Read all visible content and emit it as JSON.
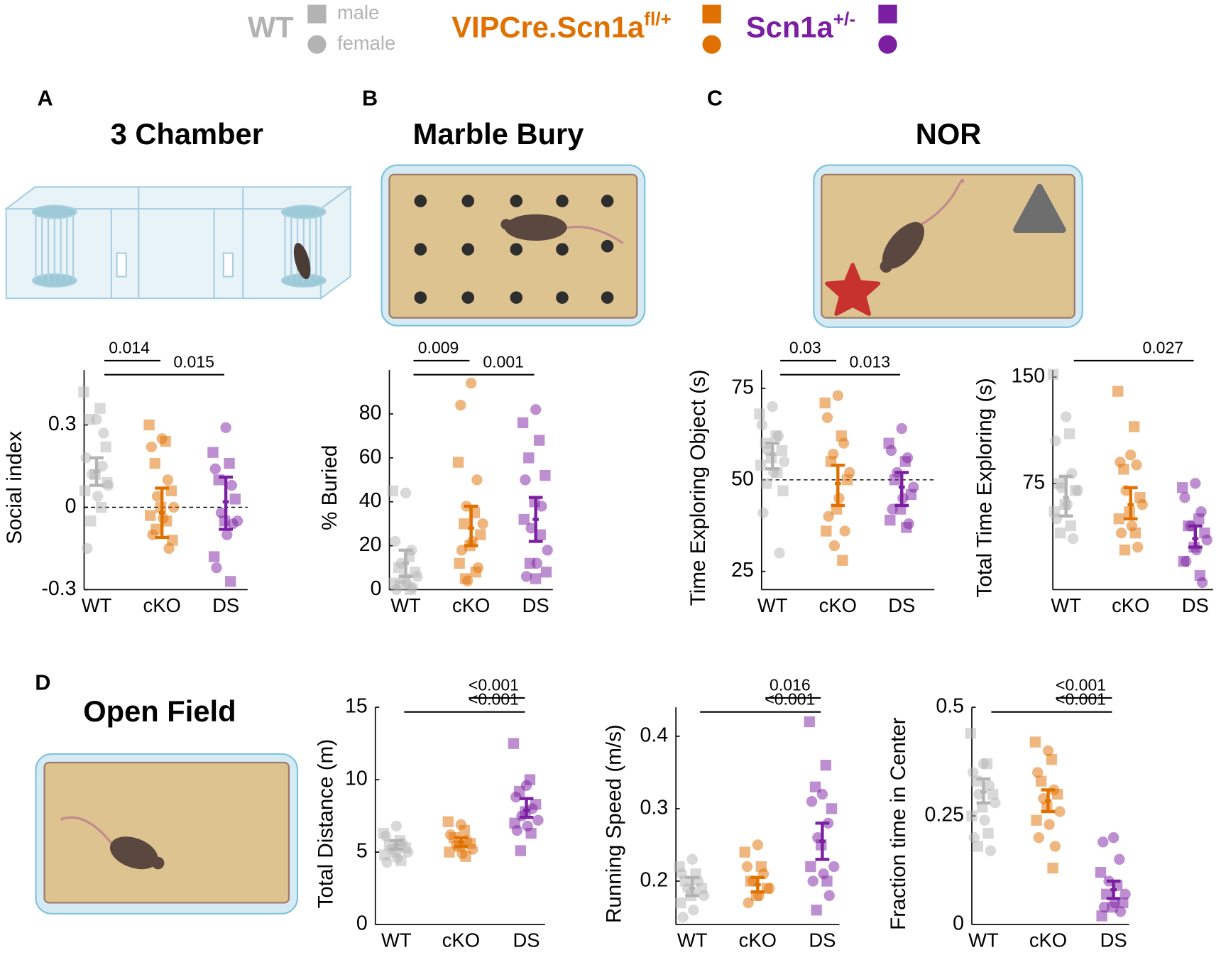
{
  "legend": {
    "groups": [
      {
        "name": "WT",
        "color": "#b3b3b3"
      },
      {
        "name": "VIPCre.Scn1a",
        "sup": "fl/+",
        "color": "#e07000"
      },
      {
        "name": "Scn1a",
        "sup": "+/-",
        "color": "#7b1fa2"
      }
    ],
    "sexes": [
      {
        "name": "male",
        "marker": "square"
      },
      {
        "name": "female",
        "marker": "circle"
      }
    ]
  },
  "panels": [
    {
      "letter": "A",
      "title": "3 Chamber"
    },
    {
      "letter": "B",
      "title": "Marble Bury"
    },
    {
      "letter": "C",
      "title": "NOR"
    },
    {
      "letter": "D",
      "title": "Open Field"
    }
  ],
  "chart_data": [
    {
      "type": "strip",
      "ylabel": "Social index",
      "categories": [
        "WT",
        "cKO",
        "DS"
      ],
      "ylim": [
        -0.3,
        0.5
      ],
      "yticks": [
        -0.3,
        0,
        0.3
      ],
      "refline": 0,
      "groups": [
        {
          "male": [
            0.42,
            0.36,
            0.32,
            0.22,
            0.12,
            0.06,
            0.0,
            -0.05,
            0.09
          ],
          "female": [
            0.32,
            0.18,
            0.15,
            0.12,
            0.08,
            0.04,
            -0.15,
            0.27
          ],
          "mean": 0.13,
          "err_low": 0.08,
          "err_high": 0.18
        },
        {
          "male": [
            0.3,
            0.24,
            0.16,
            0.06,
            0.0,
            -0.03,
            -0.05,
            -0.08,
            -0.12
          ],
          "female": [
            0.25,
            0.22,
            0.1,
            0.04,
            0.0,
            -0.04,
            -0.1,
            -0.15
          ],
          "mean": -0.02,
          "err_low": -0.11,
          "err_high": 0.07
        },
        {
          "male": [
            0.2,
            0.16,
            0.1,
            0.03,
            -0.05,
            -0.18,
            -0.27
          ],
          "female": [
            0.29,
            0.14,
            0.08,
            -0.02,
            -0.05,
            -0.1,
            -0.22,
            -0.06
          ],
          "mean": 0.02,
          "err_low": -0.08,
          "err_high": 0.11
        }
      ],
      "comparisons": [
        {
          "from": 0,
          "to": 1,
          "label": "0.014"
        },
        {
          "from": 0,
          "to": 2,
          "label": "0.015"
        }
      ]
    },
    {
      "type": "strip",
      "ylabel": "% Buried",
      "categories": [
        "WT",
        "cKO",
        "DS"
      ],
      "ylim": [
        0,
        100
      ],
      "yticks": [
        0,
        20,
        40,
        60,
        80
      ],
      "groups": [
        {
          "male": [
            45,
            15,
            10,
            8,
            5,
            3,
            0,
            2
          ],
          "female": [
            44,
            22,
            18,
            12,
            6,
            3,
            0,
            1
          ],
          "mean": 12,
          "err_low": 6,
          "err_high": 18
        },
        {
          "male": [
            58,
            35,
            30,
            25,
            20,
            12,
            8,
            5
          ],
          "female": [
            94,
            84,
            50,
            38,
            30,
            22,
            18,
            10,
            4
          ],
          "mean": 28,
          "err_low": 20,
          "err_high": 38
        },
        {
          "male": [
            76,
            68,
            60,
            52,
            40,
            32,
            25,
            12,
            8,
            5
          ],
          "female": [
            82,
            50,
            38,
            28,
            18,
            12,
            6
          ],
          "mean": 32,
          "err_low": 22,
          "err_high": 42
        }
      ],
      "comparisons": [
        {
          "from": 0,
          "to": 1,
          "label": "0.009"
        },
        {
          "from": 0,
          "to": 2,
          "label": "0.001"
        }
      ]
    },
    {
      "type": "strip",
      "ylabel": "Time Exploring Object (s)",
      "categories": [
        "WT",
        "cKO",
        "DS"
      ],
      "ylim": [
        20,
        80
      ],
      "yticks": [
        25,
        50,
        75
      ],
      "refline": 50,
      "groups": [
        {
          "male": [
            68,
            62,
            60,
            58,
            56,
            54,
            52,
            49,
            47
          ],
          "female": [
            70,
            65,
            62,
            58,
            55,
            52,
            41,
            30
          ],
          "mean": 57,
          "err_low": 53,
          "err_high": 60
        },
        {
          "male": [
            71,
            62,
            55,
            50,
            42,
            36,
            28
          ],
          "female": [
            73,
            67,
            60,
            57,
            52,
            45,
            40,
            36,
            32
          ],
          "mean": 49,
          "err_low": 43,
          "err_high": 54
        },
        {
          "male": [
            60,
            55,
            50,
            46,
            42,
            39,
            37
          ],
          "female": [
            64,
            58,
            56,
            52,
            48,
            45,
            42,
            38
          ],
          "mean": 48,
          "err_low": 43,
          "err_high": 52
        }
      ],
      "comparisons": [
        {
          "from": 0,
          "to": 1,
          "label": "0.03"
        },
        {
          "from": 0,
          "to": 2,
          "label": "0.013"
        }
      ]
    },
    {
      "type": "strip",
      "ylabel": "Total Time Exploring (s)",
      "categories": [
        "WT",
        "cKO",
        "DS"
      ],
      "ylim": [
        0,
        155
      ],
      "yticks": [
        75,
        150
      ],
      "groups": [
        {
          "male": [
            152,
            110,
            75,
            70,
            60,
            55,
            45,
            40
          ],
          "female": [
            122,
            105,
            82,
            72,
            70,
            60,
            50,
            36
          ],
          "mean": 65,
          "err_low": 52,
          "err_high": 80
        },
        {
          "male": [
            140,
            115,
            85,
            65,
            55,
            50,
            40,
            28
          ],
          "female": [
            95,
            90,
            88,
            70,
            60,
            45,
            40,
            30
          ],
          "mean": 60,
          "err_low": 50,
          "err_high": 72
        },
        {
          "male": [
            72,
            50,
            45,
            40,
            30,
            20,
            10
          ],
          "female": [
            75,
            65,
            55,
            45,
            35,
            28,
            20,
            5
          ],
          "mean": 36,
          "err_low": 30,
          "err_high": 45
        }
      ],
      "comparisons": [
        {
          "from": 0,
          "to": 2,
          "label": "0.027"
        }
      ]
    },
    {
      "type": "strip",
      "ylabel": "Total Distance (m)",
      "categories": [
        "WT",
        "cKO",
        "DS"
      ],
      "ylim": [
        0,
        15
      ],
      "yticks": [
        0,
        5,
        10,
        15
      ],
      "groups": [
        {
          "male": [
            6.3,
            5.8,
            5.5,
            5.3,
            5.0,
            4.8,
            4.4
          ],
          "female": [
            6.8,
            6.1,
            5.6,
            5.2,
            5.0,
            4.6,
            4.3
          ],
          "mean": 5.5,
          "err_low": 5.2,
          "err_high": 5.8
        },
        {
          "male": [
            7.1,
            6.5,
            6.0,
            5.6,
            5.4,
            5.0,
            4.7
          ],
          "female": [
            6.9,
            6.2,
            5.8,
            5.5,
            5.2,
            4.9
          ],
          "mean": 5.7,
          "err_low": 5.4,
          "err_high": 6.0
        },
        {
          "male": [
            12.5,
            10.0,
            9.2,
            8.3,
            7.8,
            7.0,
            6.3,
            5.1
          ],
          "female": [
            9.6,
            8.8,
            8.0,
            7.5,
            7.2,
            6.8,
            6.5
          ],
          "mean": 7.9,
          "err_low": 7.4,
          "err_high": 8.7
        }
      ],
      "comparisons": [
        {
          "from": 1,
          "to": 2,
          "label": "<0.001"
        },
        {
          "from": 0,
          "to": 2,
          "label": "<0.001"
        }
      ]
    },
    {
      "type": "strip",
      "ylabel": "Running Speed (m/s)",
      "categories": [
        "WT",
        "cKO",
        "DS"
      ],
      "ylim": [
        0.14,
        0.44
      ],
      "yticks": [
        0.2,
        0.3,
        0.4
      ],
      "groups": [
        {
          "male": [
            0.22,
            0.21,
            0.2,
            0.19,
            0.18,
            0.17
          ],
          "female": [
            0.23,
            0.21,
            0.2,
            0.19,
            0.18,
            0.16,
            0.15
          ],
          "mean": 0.19,
          "err_low": 0.18,
          "err_high": 0.205
        },
        {
          "male": [
            0.24,
            0.22,
            0.2,
            0.19,
            0.18
          ],
          "female": [
            0.25,
            0.22,
            0.21,
            0.2,
            0.19,
            0.18,
            0.17
          ],
          "mean": 0.195,
          "err_low": 0.185,
          "err_high": 0.205
        },
        {
          "male": [
            0.42,
            0.36,
            0.33,
            0.3,
            0.25,
            0.22,
            0.2,
            0.16
          ],
          "female": [
            0.32,
            0.31,
            0.28,
            0.26,
            0.22,
            0.21,
            0.2,
            0.18
          ],
          "mean": 0.255,
          "err_low": 0.23,
          "err_high": 0.28
        }
      ],
      "comparisons": [
        {
          "from": 1,
          "to": 2,
          "label": "0.016"
        },
        {
          "from": 0,
          "to": 2,
          "label": "<0.001"
        }
      ]
    },
    {
      "type": "strip",
      "ylabel": "Fraction time in Center",
      "categories": [
        "WT",
        "cKO",
        "DS"
      ],
      "ylim": [
        0,
        0.5
      ],
      "yticks": [
        0,
        0.25,
        0.5
      ],
      "groups": [
        {
          "male": [
            0.44,
            0.37,
            0.33,
            0.3,
            0.27,
            0.25,
            0.21,
            0.18
          ],
          "female": [
            0.37,
            0.35,
            0.32,
            0.3,
            0.28,
            0.24,
            0.2,
            0.17
          ],
          "mean": 0.305,
          "err_low": 0.28,
          "err_high": 0.335
        },
        {
          "male": [
            0.42,
            0.38,
            0.33,
            0.3,
            0.27,
            0.24,
            0.13
          ],
          "female": [
            0.4,
            0.35,
            0.31,
            0.29,
            0.26,
            0.23,
            0.2,
            0.18
          ],
          "mean": 0.285,
          "err_low": 0.26,
          "err_high": 0.31
        },
        {
          "male": [
            0.12,
            0.09,
            0.07,
            0.05,
            0.04,
            0.02
          ],
          "female": [
            0.2,
            0.19,
            0.15,
            0.1,
            0.07,
            0.05,
            0.04,
            0.03
          ],
          "mean": 0.08,
          "err_low": 0.06,
          "err_high": 0.1
        }
      ],
      "comparisons": [
        {
          "from": 1,
          "to": 2,
          "label": "<0.001"
        },
        {
          "from": 0,
          "to": 2,
          "label": "<0.001"
        }
      ]
    }
  ]
}
